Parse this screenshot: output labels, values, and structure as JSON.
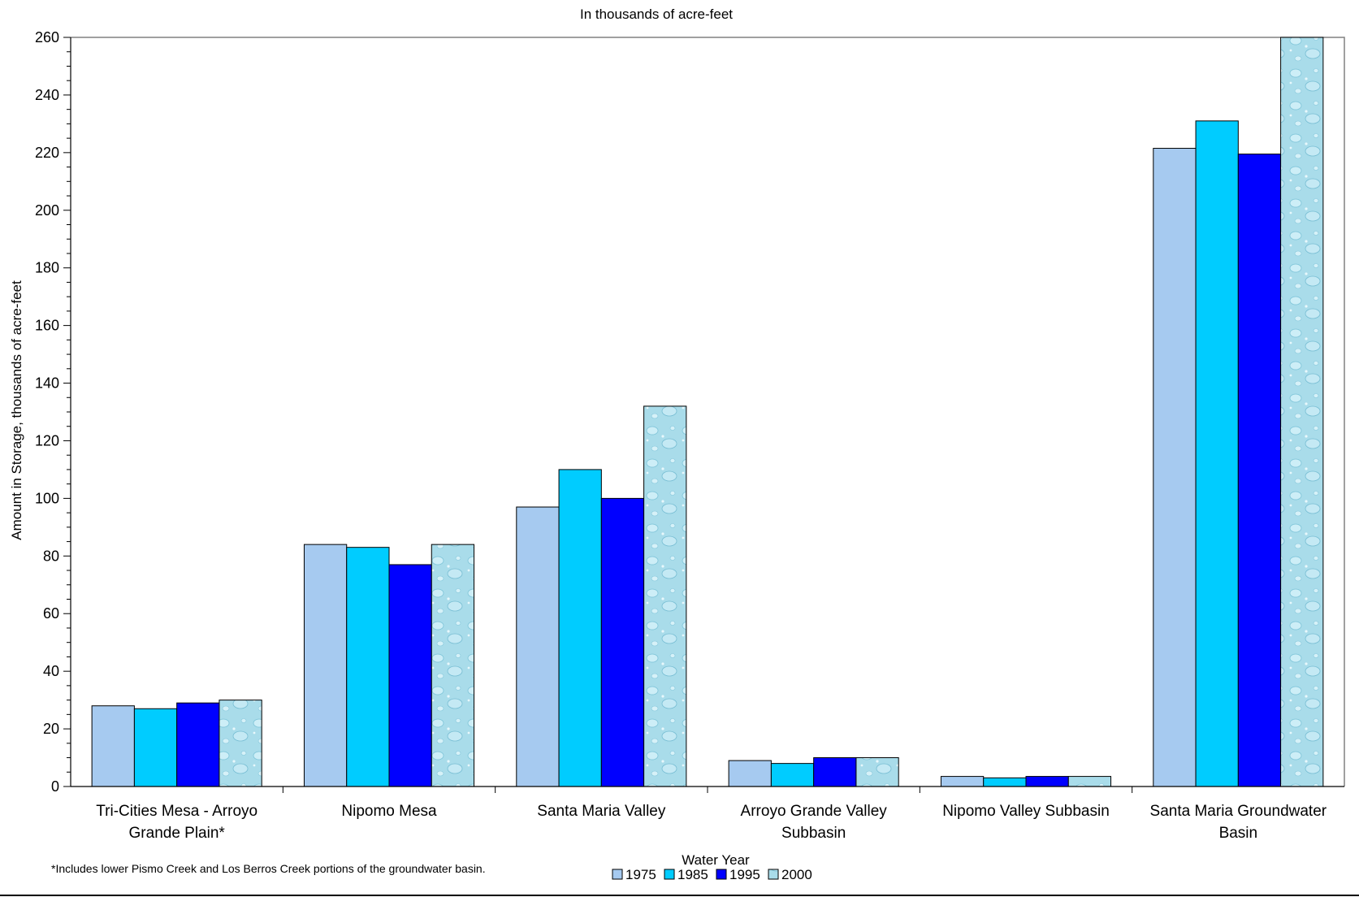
{
  "chart_data": {
    "type": "bar",
    "title": "In thousands of acre-feet",
    "ylabel": "Amount in Storage, thousands of acre-feet",
    "xlabel": "Water Year",
    "ylim": [
      0,
      260
    ],
    "y_ticks": [
      "0",
      "20",
      "40",
      "60",
      "80",
      "100",
      "120",
      "140",
      "160",
      "180",
      "200",
      "220",
      "240",
      "260"
    ],
    "grid": false,
    "legend_position": "bottom-center",
    "categories": [
      [
        "Tri-Cities Mesa - Arroyo",
        "Grande Plain*"
      ],
      [
        "Nipomo Mesa"
      ],
      [
        "Santa Maria Valley"
      ],
      [
        "Arroyo Grande Valley",
        "Subbasin"
      ],
      [
        "Nipomo Valley Subbasin"
      ],
      [
        "Santa Maria Groundwater",
        "Basin"
      ]
    ],
    "series": [
      {
        "name": "1975",
        "color": "#a6caf0",
        "values": [
          28,
          84,
          97,
          9,
          3.5,
          221.5
        ]
      },
      {
        "name": "1985",
        "color": "#00ccff",
        "values": [
          27,
          83,
          110,
          8,
          3,
          231
        ]
      },
      {
        "name": "1995",
        "color": "#0000ff",
        "values": [
          29,
          77,
          100,
          10,
          3.5,
          219.5
        ]
      },
      {
        "name": "2000",
        "color": "#a9dcea",
        "pattern": "water-droplets",
        "values": [
          30,
          84,
          132,
          10,
          3.5,
          260
        ]
      }
    ],
    "footnote": "*Includes lower Pismo Creek and Los Berros Creek portions of the groundwater basin."
  }
}
